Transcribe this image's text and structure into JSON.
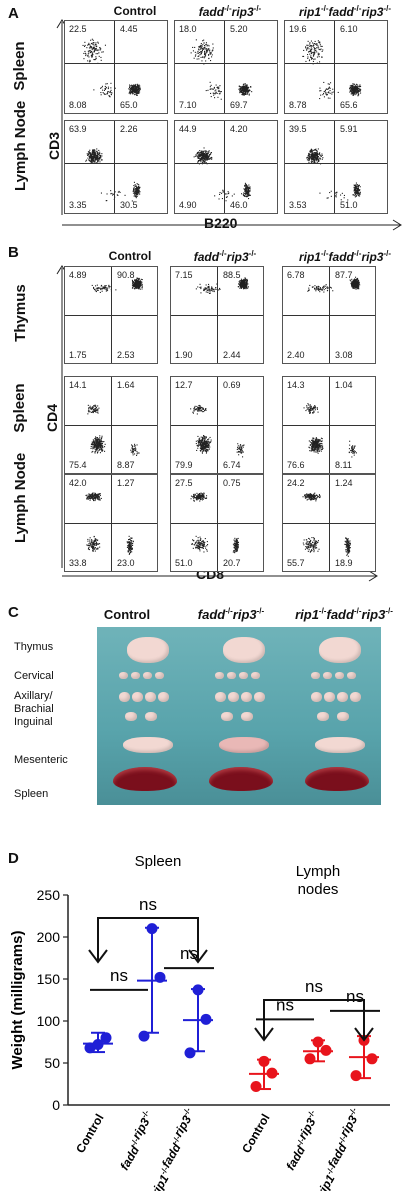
{
  "panel_letters": [
    "A",
    "B",
    "C",
    "D"
  ],
  "genotypes": {
    "control": "Control",
    "fadd_rip3": "fadd-/-rip3-/-",
    "rip1_fadd_rip3": "rip1-/-fadd-/-rip3-/-"
  },
  "genotype_parts": {
    "fadd_rip3": [
      [
        "fadd",
        "-/-"
      ],
      [
        "rip3",
        "-/-"
      ]
    ],
    "rip1_fadd_rip3": [
      [
        "rip1",
        "-/-"
      ],
      [
        "fadd",
        "-/-"
      ],
      [
        "rip3",
        "-/-"
      ]
    ]
  },
  "panel_a": {
    "y_axis": "CD3",
    "x_axis": "B220",
    "rows": [
      "Spleen",
      "Lymph Node"
    ],
    "quadrants": [
      [
        [
          "22.5",
          "4.45",
          "8.08",
          "65.0"
        ],
        [
          "18.0",
          "5.20",
          "7.10",
          "69.7"
        ],
        [
          "19.6",
          "6.10",
          "8.78",
          "65.6"
        ]
      ],
      [
        [
          "63.9",
          "2.26",
          "3.35",
          "30.5"
        ],
        [
          "44.9",
          "4.20",
          "4.90",
          "46.0"
        ],
        [
          "39.5",
          "5.91",
          "3.53",
          "51.0"
        ]
      ]
    ]
  },
  "panel_b": {
    "y_axis": "CD4",
    "x_axis": "CD8",
    "rows": [
      "Thymus",
      "Spleen",
      "Lymph Node"
    ],
    "quadrants": [
      [
        [
          "4.89",
          "90.8",
          "1.75",
          "2.53"
        ],
        [
          "7.15",
          "88.5",
          "1.90",
          "2.44"
        ],
        [
          "6.78",
          "87.7",
          "2.40",
          "3.08"
        ]
      ],
      [
        [
          "14.1",
          "1.64",
          "75.4",
          "8.87"
        ],
        [
          "12.7",
          "0.69",
          "79.9",
          "6.74"
        ],
        [
          "14.3",
          "1.04",
          "76.6",
          "8.11"
        ]
      ],
      [
        [
          "42.0",
          "1.27",
          "33.8",
          "23.0"
        ],
        [
          "27.5",
          "0.75",
          "51.0",
          "20.7"
        ],
        [
          "24.2",
          "1.24",
          "55.7",
          "18.9"
        ]
      ]
    ]
  },
  "panel_c": {
    "organ_labels": [
      "Thymus",
      "Cervical",
      "Axillary/",
      "Brachial",
      "Inguinal",
      "Mesenteric",
      "Spleen"
    ]
  },
  "chart_data": {
    "type": "scatter",
    "ylabel": "Weight (milligrams)",
    "ylim": [
      0,
      250
    ],
    "yticks": [
      0,
      50,
      100,
      150,
      200,
      250
    ],
    "groups": [
      {
        "name": "Spleen",
        "label_lines": [
          "Spleen"
        ],
        "color": "#1f1fd6",
        "categories": [
          "Control",
          "fadd-/-rip3-/-",
          "rip1-/-fadd-/-rip3-/-"
        ],
        "points": [
          [
            68,
            80,
            72
          ],
          [
            82,
            152,
            210
          ],
          [
            62,
            102,
            137
          ]
        ],
        "mean": [
          73,
          148,
          101
        ],
        "sd_low": [
          63,
          86,
          64
        ],
        "sd_high": [
          86,
          211,
          138
        ]
      },
      {
        "name": "Lymph nodes",
        "label_lines": [
          "Lymph",
          "nodes"
        ],
        "color": "#e8141c",
        "categories": [
          "Control",
          "fadd-/-rip3-/-",
          "rip1-/-fadd-/-rip3-/-"
        ],
        "points": [
          [
            22,
            38,
            52
          ],
          [
            55,
            65,
            75
          ],
          [
            35,
            55,
            77
          ]
        ],
        "mean": [
          37,
          64,
          57
        ],
        "sd_low": [
          19,
          52,
          32
        ],
        "sd_high": [
          54,
          77,
          82
        ]
      }
    ],
    "annotations": [
      "ns",
      "ns",
      "ns",
      "ns",
      "ns",
      "ns"
    ]
  }
}
